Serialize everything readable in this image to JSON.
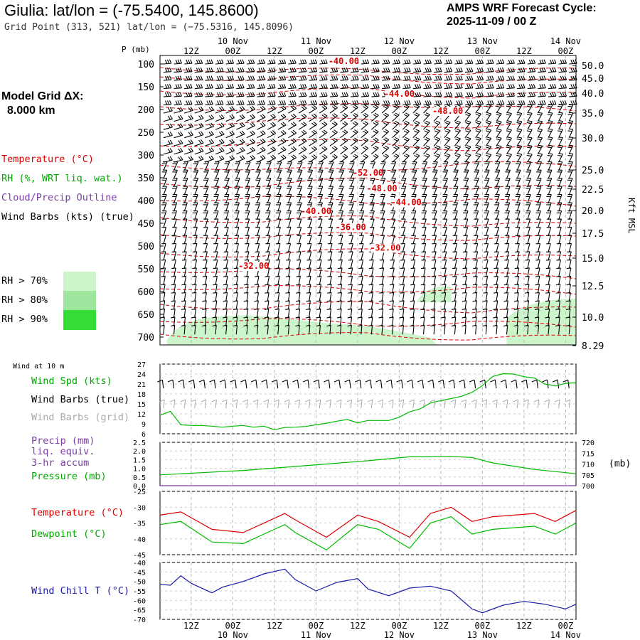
{
  "header": {
    "title": "Giulia:  lat/lon = (-75.5400, 145.8600)",
    "grid_point": "Grid Point (313, 521) lat/lon = (−75.5316, 145.8096)",
    "cycle_line1": "AMPS WRF Forecast Cycle:",
    "cycle_line2": "2025-11-09 / 00  Z",
    "model_grid_l1": "Model Grid ΔX:",
    "model_grid_l2": "8.000 km"
  },
  "legend_upper": {
    "temperature": "Temperature (°C)",
    "rh": "RH (%, WRT liq. wat.)",
    "cloud": "Cloud/Precip Outline",
    "barbs": "Wind Barbs (kts) (true)",
    "rh70": "RH > 70%",
    "rh80": "RH > 80%",
    "rh90": "RH > 90%"
  },
  "legend_10m": {
    "heading": "Wind at 10 m",
    "spd": "Wind Spd (kts)",
    "barbs_true": "Wind Barbs (true)",
    "barbs_grid": "Wind Barbs (grid)"
  },
  "legend_precip": {
    "l1": "Precip (mm)",
    "l2": "liq. equiv.",
    "l3": "3-hr accum",
    "l4": "Pressure (mb)"
  },
  "legend_temp": {
    "temp": "Temperature (°C)",
    "dew": "Dewpoint (°C)"
  },
  "legend_chill": {
    "chill": "Wind Chill T (°C)"
  },
  "colors": {
    "temperature": "#dd0000",
    "rh70": "#ccf5cc",
    "rh80": "#9ee69e",
    "rh90": "#33dd33",
    "wind_speed": "#00bb00",
    "barb_grid": "#aaaaaa",
    "cloud": "#7a3fa0",
    "chill": "#1a1aa8",
    "pressure": "#00bb00"
  },
  "time_axis": {
    "top_ticks": [
      "12Z",
      "00Z",
      "12Z",
      "00Z",
      "12Z",
      "00Z",
      "12Z",
      "00Z",
      "12Z",
      "00Z"
    ],
    "top_dates": [
      "10 Nov",
      "11 Nov",
      "12 Nov",
      "13 Nov",
      "14 Nov"
    ],
    "bottom_ticks": [
      "12Z",
      "00Z",
      "12Z",
      "00Z",
      "12Z",
      "00Z",
      "12Z",
      "00Z",
      "12Z",
      "00Z"
    ],
    "bottom_dates": [
      "10 Nov",
      "11 Nov",
      "12 Nov",
      "13 Nov",
      "14 Nov"
    ]
  },
  "chart_data": [
    {
      "type": "heatmap",
      "panel": "upper-air cross section",
      "xlabel": "",
      "ylabel": "P (mb)",
      "y2label": "Kft MSL",
      "x_range_hours": [
        0,
        120
      ],
      "pressure_ticks": [
        "100",
        "150",
        "200",
        "250",
        "300",
        "350",
        "400",
        "450",
        "500",
        "550",
        "600",
        "650",
        "700"
      ],
      "kft_ticks": [
        "50.0",
        "45.0",
        "40.0",
        "35.0",
        "30.0",
        "25.0",
        "22.5",
        "20.0",
        "17.5",
        "15.0",
        "12.5",
        "10.0",
        "8.29"
      ],
      "temperature_contour_labels": [
        {
          "label": "-40.00",
          "hour": 53,
          "p": 100
        },
        {
          "label": "-44.00",
          "hour": 69,
          "p": 123
        },
        {
          "label": "-48.00",
          "hour": 83,
          "p": 135
        },
        {
          "label": "-52.00",
          "hour": 60,
          "p": 345
        },
        {
          "label": "-48.00",
          "hour": 64,
          "p": 380
        },
        {
          "label": "-44.00",
          "hour": 71,
          "p": 410
        },
        {
          "label": "-40.00",
          "hour": 45,
          "p": 430
        },
        {
          "label": "-36.00",
          "hour": 55,
          "p": 465
        },
        {
          "label": "-32.00",
          "hour": 65,
          "p": 510
        },
        {
          "label": "-32.00",
          "hour": 27,
          "p": 550
        }
      ],
      "grid": true
    },
    {
      "type": "line",
      "panel": "10 m wind speed",
      "ylim": [
        6,
        27
      ],
      "yticks": [
        "27",
        "24",
        "21",
        "18",
        "15",
        "12",
        "9",
        "6"
      ],
      "series": [
        {
          "name": "Wind Spd (kts)",
          "x": [
            0,
            3,
            6,
            9,
            12,
            15,
            18,
            21,
            24,
            27,
            30,
            33,
            36,
            39,
            42,
            45,
            48,
            51,
            54,
            57,
            60,
            63,
            66,
            69,
            72,
            75,
            78,
            81,
            84,
            87,
            90,
            93,
            96,
            99,
            102,
            105,
            108,
            111,
            114,
            117,
            120
          ],
          "values": [
            11.6,
            12.8,
            8.7,
            8.5,
            8.5,
            8.3,
            8.0,
            8.3,
            8.5,
            8.0,
            8.3,
            7.2,
            7.9,
            8.0,
            8.2,
            8.7,
            9.2,
            9.8,
            10.3,
            9.3,
            10.0,
            10.0,
            10.0,
            11.0,
            12.6,
            13.5,
            15.3,
            16.0,
            16.6,
            17.3,
            18.5,
            20.5,
            23.3,
            24.1,
            24.0,
            23.2,
            22.8,
            21.0,
            20.4,
            21.2,
            21.4
          ]
        }
      ]
    },
    {
      "type": "line",
      "panel": "precip and pressure",
      "ylim": [
        0,
        2.5
      ],
      "y2lim": [
        700,
        720
      ],
      "yticks": [
        "2.5",
        "2.0",
        "1.5",
        "1.0",
        "0.5",
        "0.0"
      ],
      "y2ticks": [
        "720",
        "715",
        "710",
        "705",
        "700"
      ],
      "y2label": "(mb)",
      "series": [
        {
          "name": "Pressure (mb)",
          "axis": "right",
          "x": [
            0,
            12,
            24,
            36,
            48,
            60,
            72,
            84,
            90,
            96,
            108,
            120
          ],
          "values": [
            705.0,
            706.0,
            707.0,
            708.5,
            710.0,
            711.5,
            713.3,
            713.5,
            713.0,
            710.5,
            707.5,
            705.5
          ]
        },
        {
          "name": "Precip (mm)",
          "axis": "left",
          "x": [
            0,
            120
          ],
          "values": [
            0.0,
            0.0
          ]
        }
      ]
    },
    {
      "type": "line",
      "panel": "temperature and dewpoint",
      "ylim": [
        -45,
        -25
      ],
      "yticks": [
        "-25",
        "-30",
        "-35",
        "-40",
        "-45"
      ],
      "series": [
        {
          "name": "Temperature (°C)",
          "x": [
            0,
            6,
            15,
            24,
            36,
            39,
            48,
            57,
            63,
            72,
            78,
            84,
            90,
            96,
            108,
            114,
            120
          ],
          "values": [
            -32.5,
            -31.5,
            -37.0,
            -38.0,
            -32.0,
            -34.0,
            -39.5,
            -32.5,
            -34.5,
            -39.5,
            -32.0,
            -30.0,
            -34.5,
            -33.0,
            -32.0,
            -34.5,
            -31.0
          ]
        },
        {
          "name": "Dewpoint (°C)",
          "x": [
            0,
            6,
            15,
            24,
            36,
            39,
            48,
            57,
            63,
            72,
            78,
            84,
            90,
            96,
            108,
            114,
            120
          ],
          "values": [
            -35.5,
            -34.5,
            -41.0,
            -41.5,
            -35.5,
            -38.0,
            -43.5,
            -35.5,
            -37.0,
            -43.0,
            -35.0,
            -33.0,
            -38.5,
            -37.0,
            -36.0,
            -38.5,
            -35.0
          ]
        }
      ]
    },
    {
      "type": "line",
      "panel": "wind chill",
      "ylim": [
        -70,
        -40
      ],
      "yticks": [
        "-40",
        "-45",
        "-50",
        "-55",
        "-60",
        "-65",
        "-70"
      ],
      "series": [
        {
          "name": "Wind Chill T (°C)",
          "x": [
            0,
            3,
            6,
            9,
            15,
            18,
            24,
            30,
            36,
            39,
            45,
            51,
            57,
            60,
            66,
            72,
            78,
            84,
            90,
            93,
            99,
            105,
            111,
            117,
            120
          ],
          "values": [
            -51.5,
            -52.0,
            -47.0,
            -51.0,
            -56.0,
            -53.0,
            -50.0,
            -46.0,
            -43.5,
            -49.0,
            -55.0,
            -50.5,
            -48.5,
            -54.0,
            -57.5,
            -53.5,
            -52.5,
            -55.0,
            -64.5,
            -66.5,
            -62.5,
            -60.5,
            -62.0,
            -64.5,
            -62.0
          ]
        }
      ]
    }
  ]
}
